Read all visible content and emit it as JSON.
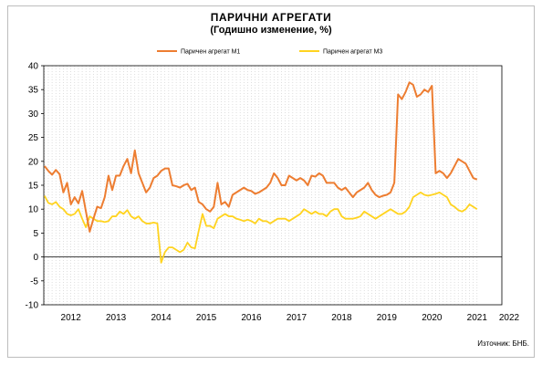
{
  "chart_data": {
    "type": "line",
    "title": "ПАРИЧНИ  АГРЕГАТИ",
    "subtitle": "(Годишно  изменение, %)",
    "source": "Източник: БНБ.",
    "ylim": [
      -10,
      40
    ],
    "yticks": [
      "-10",
      "-5",
      "0",
      "5",
      "10",
      "15",
      "20",
      "25",
      "30",
      "35",
      "40"
    ],
    "years": [
      "2012",
      "2013",
      "2014",
      "2015",
      "2016",
      "2017",
      "2018",
      "2019",
      "2020",
      "2021",
      "2022"
    ],
    "xstart_year": 2011.9,
    "xend_year": 2022.05,
    "legend_position": "top",
    "grid": "vertical dashed",
    "series": [
      {
        "name": "Паричен агрегат М1",
        "color": "#ED7D31",
        "x_start": 2011.917,
        "step_months": 1,
        "values": [
          19.0,
          18.0,
          17.2,
          18.2,
          17.3,
          13.5,
          15.5,
          11.0,
          12.5,
          11.2,
          13.8,
          9.5,
          5.3,
          8.0,
          10.5,
          10.2,
          12.5,
          17.0,
          14.0,
          17.0,
          17.0,
          19.0,
          20.5,
          17.5,
          22.3,
          17.5,
          15.5,
          13.5,
          14.5,
          16.5,
          17.0,
          18.0,
          18.5,
          18.5,
          15.0,
          14.8,
          14.5,
          15.0,
          15.3,
          14.0,
          14.5,
          11.5,
          11.0,
          10.0,
          9.5,
          10.5,
          15.5,
          11.0,
          11.5,
          10.5,
          13.0,
          13.5,
          14.0,
          14.5,
          14.0,
          13.8,
          13.2,
          13.5,
          14.0,
          14.5,
          15.5,
          17.5,
          16.5,
          15.0,
          15.0,
          17.0,
          16.5,
          16.0,
          16.5,
          16.0,
          15.0,
          17.0,
          16.8,
          17.5,
          17.0,
          15.5,
          15.5,
          15.5,
          14.5,
          14.0,
          14.5,
          13.5,
          12.5,
          13.5,
          14.0,
          14.5,
          15.5,
          14.0,
          13.0,
          12.5,
          12.8,
          13.0,
          13.5,
          15.5,
          34.0,
          33.0,
          34.5,
          36.5,
          36.0,
          33.5,
          34.0,
          35.0,
          34.5,
          35.8,
          17.5,
          18.0,
          17.5,
          16.5,
          17.5,
          19.0,
          20.5,
          20.0,
          19.5,
          18.0,
          16.5,
          16.2
        ]
      },
      {
        "name": "Паричен агрегат М3",
        "color": "#FFD320",
        "x_start": 2011.917,
        "step_months": 1,
        "values": [
          12.8,
          11.3,
          11.0,
          11.5,
          10.5,
          10.0,
          9.0,
          8.7,
          9.0,
          10.0,
          8.0,
          6.2,
          8.5,
          8.0,
          7.5,
          7.5,
          7.3,
          7.5,
          8.5,
          8.5,
          9.5,
          9.0,
          9.8,
          8.5,
          8.0,
          8.5,
          7.5,
          7.0,
          7.0,
          7.2,
          7.0,
          -1.2,
          1.0,
          2.0,
          2.0,
          1.5,
          1.0,
          1.5,
          3.0,
          2.0,
          1.8,
          5.5,
          9.0,
          6.5,
          6.5,
          6.0,
          8.0,
          8.5,
          9.0,
          8.5,
          8.5,
          8.0,
          7.8,
          7.5,
          7.8,
          7.5,
          7.0,
          8.0,
          7.5,
          7.5,
          7.0,
          7.5,
          8.0,
          8.0,
          8.0,
          7.5,
          8.0,
          8.5,
          9.0,
          10.0,
          9.5,
          9.0,
          9.5,
          9.0,
          9.0,
          8.5,
          9.5,
          10.0,
          10.0,
          8.5,
          8.0,
          8.0,
          8.0,
          8.2,
          8.5,
          9.5,
          9.0,
          8.5,
          8.0,
          8.5,
          9.0,
          9.5,
          10.0,
          9.5,
          9.0,
          9.0,
          9.5,
          10.5,
          12.5,
          13.0,
          13.5,
          13.0,
          12.8,
          13.0,
          13.2,
          13.5,
          13.0,
          12.5,
          11.0,
          10.5,
          9.8,
          9.5,
          10.0,
          11.0,
          10.5,
          10.0
        ]
      }
    ]
  }
}
